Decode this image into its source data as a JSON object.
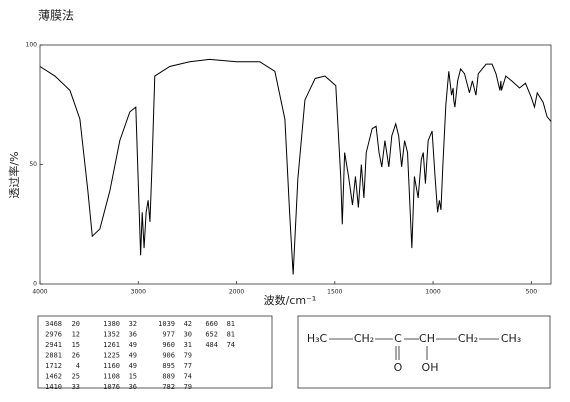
{
  "chart_data": {
    "type": "line",
    "title": "薄膜法",
    "xlabel": "波数/cm⁻¹",
    "ylabel": "透过率/%",
    "color": "#000000",
    "xlim": [
      4000,
      400
    ],
    "xticks": [
      4000,
      3000,
      2000,
      1500,
      1000,
      500
    ],
    "ylim": [
      0,
      100
    ],
    "yticks": [
      0,
      50,
      100
    ],
    "x": [
      4000,
      3848,
      3695,
      3594,
      3513,
      3468,
      3391,
      3289,
      3188,
      3086,
      3025,
      2976,
      2960,
      2941,
      2920,
      2900,
      2881,
      2860,
      2832,
      2680,
      2477,
      2274,
      2000,
      1882,
      1805,
      1754,
      1730,
      1712,
      1688,
      1652,
      1600,
      1550,
      1495,
      1470,
      1462,
      1450,
      1430,
      1410,
      1395,
      1380,
      1365,
      1352,
      1340,
      1310,
      1290,
      1275,
      1261,
      1245,
      1225,
      1210,
      1190,
      1175,
      1160,
      1145,
      1130,
      1108,
      1095,
      1076,
      1060,
      1050,
      1039,
      1025,
      1005,
      990,
      977,
      968,
      960,
      950,
      935,
      920,
      906,
      898,
      895,
      889,
      875,
      860,
      840,
      815,
      800,
      782,
      770,
      730,
      700,
      680,
      660,
      655,
      652,
      630,
      600,
      560,
      530,
      500,
      484,
      470,
      440,
      420,
      400
    ],
    "values": [
      91,
      87,
      81,
      69,
      39,
      20,
      23,
      39,
      60,
      72,
      74,
      12,
      30,
      15,
      30,
      35,
      26,
      50,
      87,
      91,
      93,
      94,
      93,
      93,
      89,
      69,
      30,
      4,
      44,
      77,
      86,
      87,
      83,
      45,
      25,
      55,
      45,
      33,
      45,
      32,
      50,
      36,
      55,
      65,
      66,
      55,
      49,
      60,
      49,
      62,
      67,
      62,
      49,
      60,
      55,
      15,
      45,
      36,
      52,
      55,
      42,
      60,
      64,
      45,
      30,
      35,
      31,
      50,
      75,
      89,
      79,
      82,
      77,
      74,
      85,
      90,
      88,
      80,
      85,
      79,
      88,
      92,
      92,
      88,
      81,
      85,
      81,
      87,
      85,
      82,
      84,
      78,
      74,
      80,
      76,
      70,
      68
    ]
  },
  "peak_table": [
    [
      3468,
      20
    ],
    [
      2976,
      12
    ],
    [
      2941,
      15
    ],
    [
      2881,
      26
    ],
    [
      1712,
      4
    ],
    [
      1462,
      25
    ],
    [
      1410,
      33
    ],
    [
      1380,
      32
    ],
    [
      1352,
      36
    ],
    [
      1261,
      49
    ],
    [
      1225,
      49
    ],
    [
      1160,
      49
    ],
    [
      1108,
      15
    ],
    [
      1076,
      36
    ],
    [
      1039,
      42
    ],
    [
      977,
      30
    ],
    [
      960,
      31
    ],
    [
      906,
      79
    ],
    [
      895,
      77
    ],
    [
      889,
      74
    ],
    [
      782,
      79
    ],
    [
      660,
      81
    ],
    [
      652,
      81
    ],
    [
      484,
      74
    ]
  ],
  "structure": {
    "groups": [
      "H₃C",
      "CH₂",
      "C",
      "CH",
      "CH₂",
      "CH₃"
    ],
    "substituents": [
      "O",
      "OH"
    ]
  }
}
